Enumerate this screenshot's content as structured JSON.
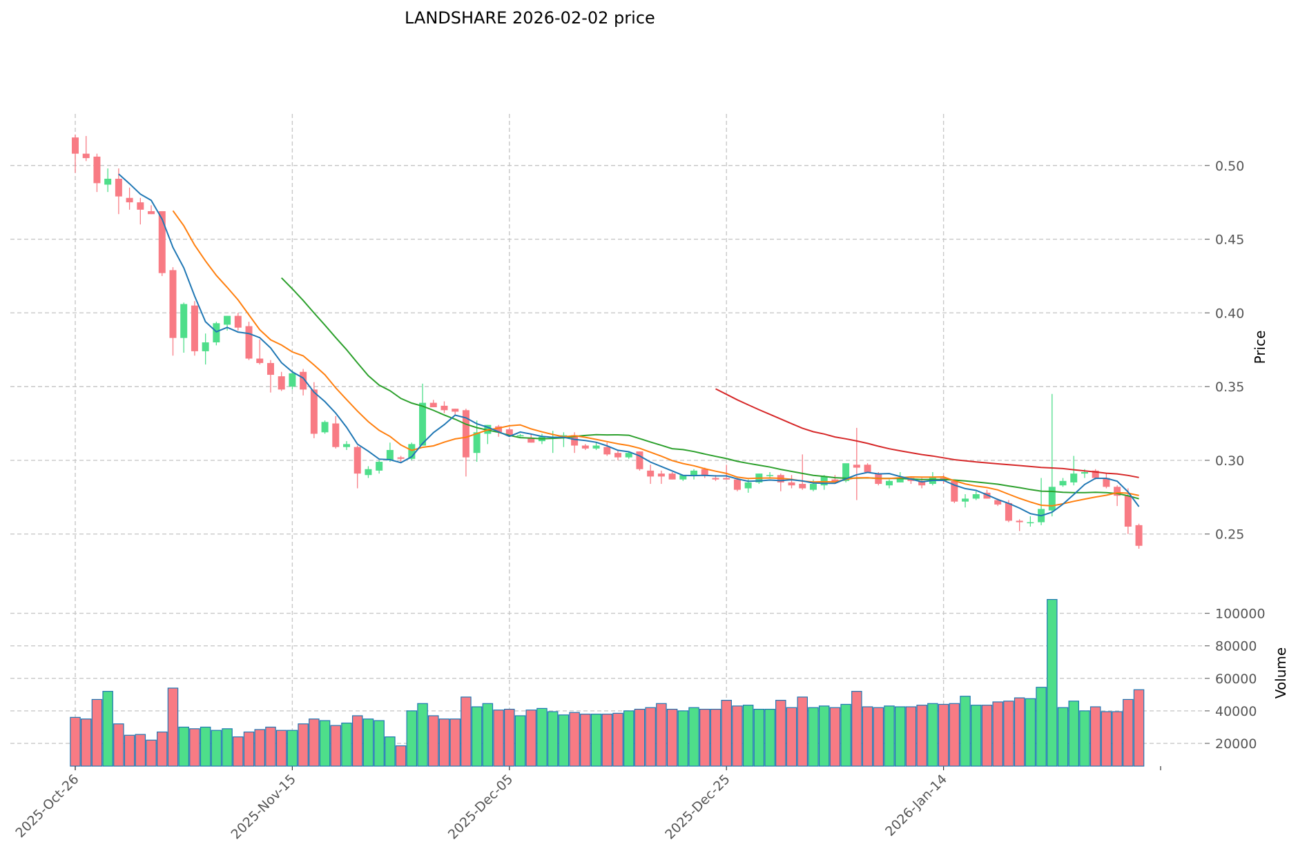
{
  "chart_data": {
    "type": "candlestick",
    "title": "LANDSHARE  2026-02-02  price",
    "price_axis": {
      "label": "Price",
      "ticks": [
        "0.25",
        "0.30",
        "0.35",
        "0.40",
        "0.45",
        "0.50"
      ],
      "ylim": [
        0.233,
        0.535
      ]
    },
    "volume_axis": {
      "label": "Volume",
      "ticks": [
        "20000",
        "40000",
        "60000",
        "80000",
        "100000"
      ],
      "ylim": [
        6000,
        110000
      ]
    },
    "x_axis": {
      "start_date": "2025-10-26",
      "ticks": [
        "2025-Oct-26",
        "2025-Nov-15",
        "2025-Dec-05",
        "2025-Dec-25",
        "2026-Jan-14"
      ]
    },
    "colors": {
      "up": "#4ede8a",
      "down": "#f87b84",
      "volume_edge": "#1f77b4",
      "ma5": "#1f77b4",
      "ma10": "#ff7f0e",
      "ma20": "#2ca02c",
      "ma60": "#d62728"
    },
    "moving_averages": [
      "MA5",
      "MA10",
      "MA20",
      "MA60"
    ],
    "ohlc": [
      [
        0.519,
        0.521,
        0.495,
        0.508
      ],
      [
        0.508,
        0.52,
        0.503,
        0.505
      ],
      [
        0.506,
        0.508,
        0.482,
        0.488
      ],
      [
        0.487,
        0.498,
        0.482,
        0.491
      ],
      [
        0.491,
        0.498,
        0.467,
        0.479
      ],
      [
        0.478,
        0.485,
        0.47,
        0.475
      ],
      [
        0.475,
        0.478,
        0.46,
        0.47
      ],
      [
        0.469,
        0.473,
        0.467,
        0.467
      ],
      [
        0.469,
        0.469,
        0.425,
        0.427
      ],
      [
        0.429,
        0.431,
        0.371,
        0.383
      ],
      [
        0.383,
        0.407,
        0.373,
        0.406
      ],
      [
        0.405,
        0.408,
        0.371,
        0.374
      ],
      [
        0.374,
        0.386,
        0.365,
        0.38
      ],
      [
        0.38,
        0.394,
        0.378,
        0.393
      ],
      [
        0.392,
        0.398,
        0.388,
        0.398
      ],
      [
        0.398,
        0.4,
        0.388,
        0.39
      ],
      [
        0.391,
        0.394,
        0.368,
        0.369
      ],
      [
        0.369,
        0.382,
        0.365,
        0.366
      ],
      [
        0.366,
        0.368,
        0.346,
        0.358
      ],
      [
        0.357,
        0.36,
        0.347,
        0.348
      ],
      [
        0.35,
        0.361,
        0.348,
        0.359
      ],
      [
        0.36,
        0.362,
        0.344,
        0.348
      ],
      [
        0.348,
        0.353,
        0.315,
        0.318
      ],
      [
        0.319,
        0.327,
        0.318,
        0.326
      ],
      [
        0.325,
        0.33,
        0.308,
        0.309
      ],
      [
        0.309,
        0.313,
        0.307,
        0.311
      ],
      [
        0.309,
        0.31,
        0.281,
        0.291
      ],
      [
        0.29,
        0.296,
        0.288,
        0.294
      ],
      [
        0.293,
        0.3,
        0.291,
        0.299
      ],
      [
        0.3,
        0.312,
        0.299,
        0.307
      ],
      [
        0.302,
        0.303,
        0.299,
        0.301
      ],
      [
        0.301,
        0.312,
        0.3,
        0.311
      ],
      [
        0.31,
        0.352,
        0.31,
        0.339
      ],
      [
        0.339,
        0.341,
        0.336,
        0.336
      ],
      [
        0.337,
        0.34,
        0.332,
        0.334
      ],
      [
        0.335,
        0.335,
        0.331,
        0.333
      ],
      [
        0.334,
        0.335,
        0.289,
        0.302
      ],
      [
        0.305,
        0.327,
        0.299,
        0.319
      ],
      [
        0.318,
        0.324,
        0.311,
        0.324
      ],
      [
        0.323,
        0.324,
        0.316,
        0.319
      ],
      [
        0.321,
        0.322,
        0.316,
        0.317
      ],
      [
        0.317,
        0.318,
        0.316,
        0.317
      ],
      [
        0.315,
        0.318,
        0.312,
        0.312
      ],
      [
        0.313,
        0.318,
        0.311,
        0.316
      ],
      [
        0.316,
        0.32,
        0.305,
        0.316
      ],
      [
        0.316,
        0.319,
        0.309,
        0.317
      ],
      [
        0.317,
        0.319,
        0.305,
        0.31
      ],
      [
        0.31,
        0.311,
        0.307,
        0.308
      ],
      [
        0.308,
        0.312,
        0.307,
        0.31
      ],
      [
        0.309,
        0.312,
        0.303,
        0.304
      ],
      [
        0.305,
        0.307,
        0.3,
        0.302
      ],
      [
        0.302,
        0.306,
        0.301,
        0.305
      ],
      [
        0.306,
        0.306,
        0.293,
        0.294
      ],
      [
        0.293,
        0.297,
        0.284,
        0.289
      ],
      [
        0.291,
        0.293,
        0.284,
        0.289
      ],
      [
        0.291,
        0.292,
        0.287,
        0.287
      ],
      [
        0.287,
        0.29,
        0.286,
        0.29
      ],
      [
        0.29,
        0.294,
        0.287,
        0.293
      ],
      [
        0.294,
        0.295,
        0.288,
        0.29
      ],
      [
        0.288,
        0.29,
        0.286,
        0.287
      ],
      [
        0.288,
        0.297,
        0.287,
        0.287
      ],
      [
        0.287,
        0.288,
        0.279,
        0.28
      ],
      [
        0.281,
        0.287,
        0.278,
        0.285
      ],
      [
        0.285,
        0.291,
        0.284,
        0.291
      ],
      [
        0.29,
        0.292,
        0.288,
        0.29
      ],
      [
        0.29,
        0.291,
        0.279,
        0.285
      ],
      [
        0.285,
        0.29,
        0.281,
        0.283
      ],
      [
        0.284,
        0.304,
        0.28,
        0.281
      ],
      [
        0.28,
        0.287,
        0.279,
        0.284
      ],
      [
        0.283,
        0.29,
        0.28,
        0.289
      ],
      [
        0.287,
        0.29,
        0.284,
        0.285
      ],
      [
        0.286,
        0.297,
        0.285,
        0.298
      ],
      [
        0.297,
        0.322,
        0.273,
        0.295
      ],
      [
        0.297,
        0.298,
        0.292,
        0.292
      ],
      [
        0.291,
        0.292,
        0.283,
        0.284
      ],
      [
        0.283,
        0.287,
        0.281,
        0.286
      ],
      [
        0.285,
        0.292,
        0.285,
        0.288
      ],
      [
        0.288,
        0.289,
        0.284,
        0.286
      ],
      [
        0.286,
        0.288,
        0.281,
        0.283
      ],
      [
        0.284,
        0.292,
        0.283,
        0.289
      ],
      [
        0.288,
        0.29,
        0.284,
        0.286
      ],
      [
        0.286,
        0.287,
        0.271,
        0.272
      ],
      [
        0.272,
        0.277,
        0.268,
        0.274
      ],
      [
        0.274,
        0.279,
        0.273,
        0.277
      ],
      [
        0.278,
        0.28,
        0.274,
        0.274
      ],
      [
        0.273,
        0.274,
        0.269,
        0.27
      ],
      [
        0.271,
        0.273,
        0.258,
        0.259
      ],
      [
        0.259,
        0.26,
        0.252,
        0.258
      ],
      [
        0.258,
        0.262,
        0.255,
        0.258
      ],
      [
        0.258,
        0.288,
        0.256,
        0.267
      ],
      [
        0.266,
        0.345,
        0.262,
        0.282
      ],
      [
        0.283,
        0.288,
        0.282,
        0.286
      ],
      [
        0.285,
        0.303,
        0.283,
        0.291
      ],
      [
        0.291,
        0.294,
        0.288,
        0.292
      ],
      [
        0.293,
        0.294,
        0.287,
        0.288
      ],
      [
        0.288,
        0.291,
        0.281,
        0.282
      ],
      [
        0.282,
        0.283,
        0.269,
        0.276
      ],
      [
        0.276,
        0.281,
        0.25,
        0.255
      ],
      [
        0.256,
        0.257,
        0.24,
        0.242
      ]
    ],
    "volume": [
      36000,
      35000,
      47000,
      52000,
      32000,
      25000,
      25500,
      22000,
      27000,
      54000,
      30000,
      29000,
      30000,
      28000,
      29000,
      24000,
      27000,
      28500,
      30000,
      28000,
      28000,
      32000,
      35000,
      34000,
      31000,
      32500,
      37000,
      35000,
      34000,
      24000,
      18500,
      40000,
      44500,
      37000,
      35000,
      35000,
      48500,
      42500,
      44500,
      40500,
      41000,
      37000,
      40500,
      41500,
      39500,
      37500,
      39000,
      38000,
      38000,
      38000,
      38500,
      40000,
      41000,
      42000,
      44500,
      41000,
      40000,
      42000,
      41000,
      41000,
      46500,
      43000,
      43500,
      41000,
      41000,
      46500,
      42000,
      48500,
      42000,
      43000,
      42000,
      44000,
      52000,
      42500,
      42000,
      43000,
      42500,
      42500,
      43500,
      44500,
      44000,
      44500,
      49000,
      43500,
      43500,
      45500,
      46000,
      48000,
      47500,
      54500,
      108500,
      42000,
      46000,
      40000,
      42500,
      39500,
      39500,
      47000,
      53000
    ]
  }
}
